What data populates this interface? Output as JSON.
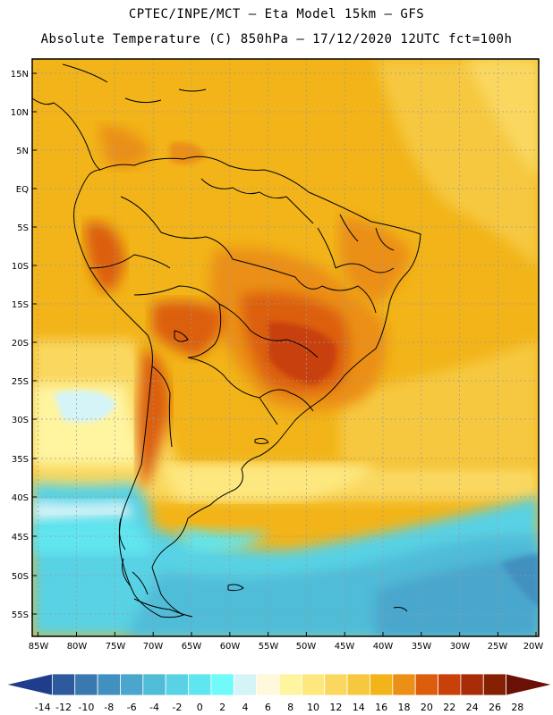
{
  "header": {
    "line1": "CPTEC/INPE/MCT –  Eta Model 15km – GFS",
    "line2": "Absolute Temperature (C) 850hPa – 17/12/2020 12UTC fct=100h"
  },
  "map": {
    "lat_labels": [
      "15N",
      "10N",
      "5N",
      "EQ",
      "5S",
      "10S",
      "15S",
      "20S",
      "25S",
      "30S",
      "35S",
      "40S",
      "45S",
      "50S",
      "55S"
    ],
    "lon_labels": [
      "85W",
      "80W",
      "75W",
      "70W",
      "65W",
      "60W",
      "55W",
      "50W",
      "45W",
      "40W",
      "35W",
      "30W",
      "25W",
      "20W"
    ]
  },
  "colorbar": {
    "colors": [
      "#203c8c",
      "#2c5a9c",
      "#3a78b0",
      "#4290c0",
      "#4aa6cc",
      "#50bcd8",
      "#58d2e4",
      "#60e6f0",
      "#70fafa",
      "#d4f4f8",
      "#fff8dc",
      "#fff4a0",
      "#fde880",
      "#fad860",
      "#f6c840",
      "#f2b418",
      "#eb8f16",
      "#dc5e0c",
      "#c8400a",
      "#a82c08",
      "#862004",
      "#6a1004"
    ],
    "labels": [
      "-14",
      "-12",
      "-10",
      "-8",
      "-6",
      "-4",
      "-2",
      "0",
      "2",
      "4",
      "6",
      "8",
      "10",
      "12",
      "14",
      "16",
      "18",
      "20",
      "22",
      "24",
      "26",
      "28"
    ]
  }
}
